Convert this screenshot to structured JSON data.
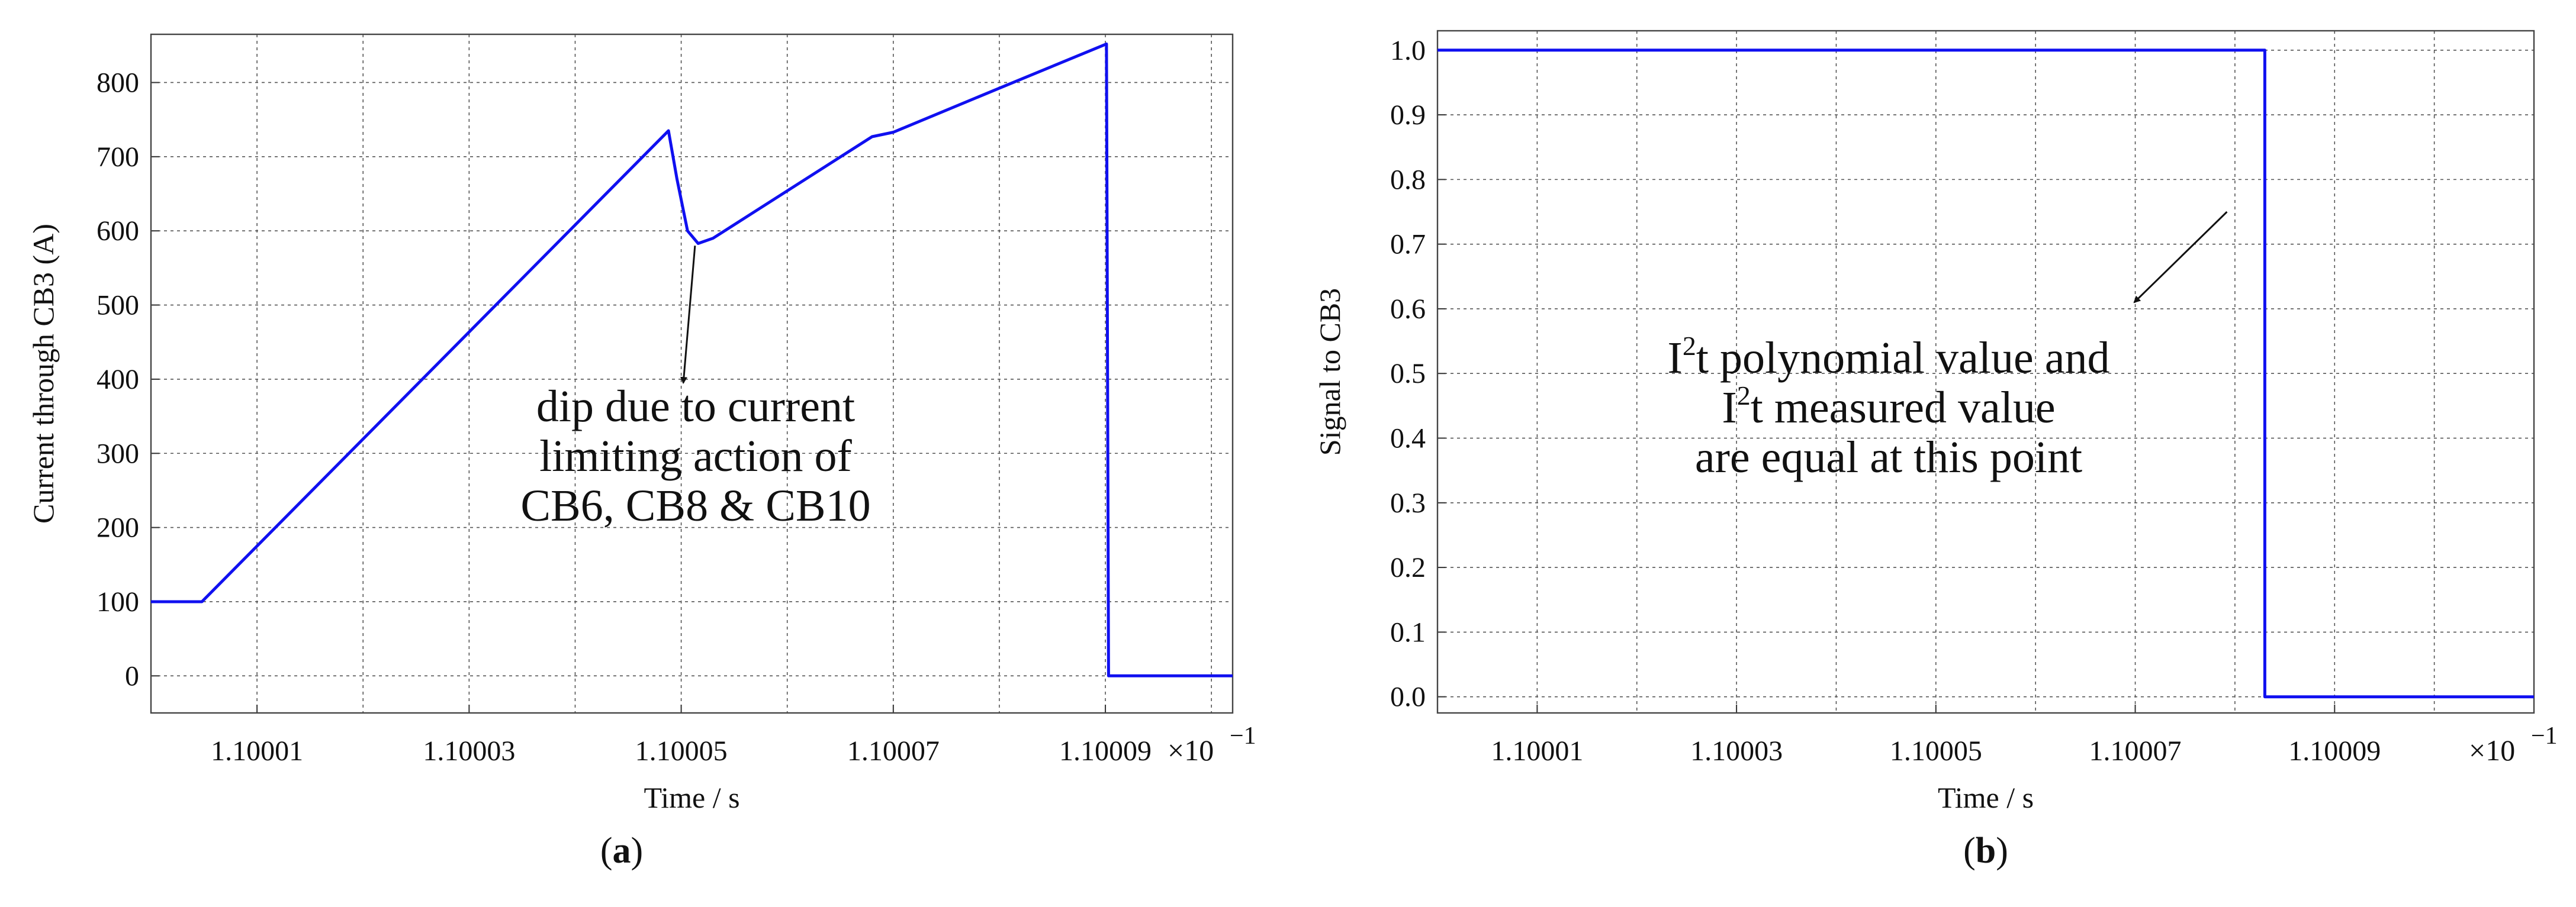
{
  "chart_data": [
    {
      "type": "line",
      "panel_label": "a",
      "xlabel": "Time / s",
      "ylabel": "Current through CB3 (A)",
      "x_multiplier": "×10",
      "x_multiplier_exp": "−1",
      "xticks": [
        "1.10001",
        "1.10003",
        "1.10005",
        "1.10007",
        "1.10009"
      ],
      "yticks": [
        "0",
        "100",
        "200",
        "300",
        "400",
        "500",
        "600",
        "700",
        "800"
      ],
      "xlim": [
        1.1,
        1.100102
      ],
      "ylim": [
        -50,
        865
      ],
      "grid": true,
      "series": [
        {
          "color": "#1010f0",
          "x": [
            1.1,
            1.1000048,
            1.1000488,
            1.1000496,
            1.1000506,
            1.1000516,
            1.100053,
            1.100068,
            1.10007,
            1.1000801,
            1.1000901,
            1.1000903,
            1.100102
          ],
          "y": [
            100,
            100,
            735,
            670,
            600,
            583,
            590,
            727,
            733,
            793,
            852,
            0,
            0
          ]
        }
      ],
      "annotation": {
        "lines": [
          "dip due to current",
          "limiting action of",
          "CB6, CB8 & CB10"
        ],
        "arrow_from": [
          1.1000513,
          580
        ],
        "arrow_to": [
          1.1000502,
          395
        ]
      }
    },
    {
      "type": "line",
      "panel_label": "b",
      "xlabel": "Time / s",
      "ylabel": "Signal to CB3",
      "x_multiplier": "×10",
      "x_multiplier_exp": "−1",
      "xticks": [
        "1.10001",
        "1.10003",
        "1.10005",
        "1.10007",
        "1.10009"
      ],
      "yticks": [
        "0.0",
        "0.1",
        "0.2",
        "0.3",
        "0.4",
        "0.5",
        "0.6",
        "0.7",
        "0.8",
        "0.9",
        "1.0"
      ],
      "xlim": [
        1.1,
        1.10011
      ],
      "ylim": [
        -0.025,
        1.03
      ],
      "grid": true,
      "series": [
        {
          "color": "#1010f0",
          "x": [
            1.1,
            1.100083,
            1.100083,
            1.10011
          ],
          "y": [
            1.0,
            1.0,
            0.0,
            0.0
          ]
        }
      ],
      "annotation": {
        "lines": [
          {
            "base": "I",
            "sup": "2",
            "rest": "t polynomial value and"
          },
          {
            "base": "I",
            "sup": "2",
            "rest": "t measured value"
          },
          {
            "base": "",
            "sup": "",
            "rest": "are equal at this point"
          }
        ],
        "arrow_from": [
          1.1000792,
          0.75
        ],
        "arrow_to": [
          1.1000699,
          0.61
        ]
      }
    }
  ]
}
